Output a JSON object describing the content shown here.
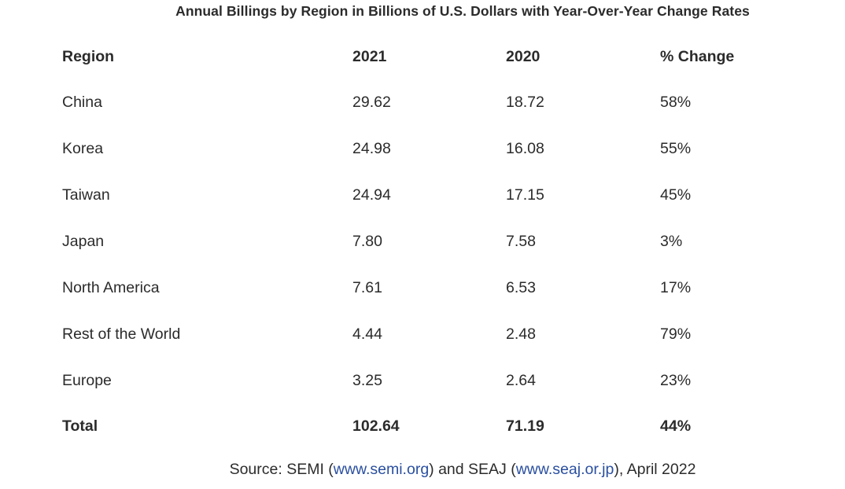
{
  "title": "Annual Billings by Region in Billions of U.S. Dollars with Year-Over-Year Change Rates",
  "table": {
    "headers": [
      "Region",
      "2021",
      "2020",
      "% Change"
    ],
    "rows": [
      [
        "China",
        "29.62",
        "18.72",
        "58%"
      ],
      [
        "Korea",
        "24.98",
        "16.08",
        "55%"
      ],
      [
        "Taiwan",
        "24.94",
        "17.15",
        "45%"
      ],
      [
        "Japan",
        "7.80",
        "7.58",
        "3%"
      ],
      [
        "North America",
        "7.61",
        "6.53",
        "17%"
      ],
      [
        "Rest of the World",
        "4.44",
        "2.48",
        "79%"
      ],
      [
        "Europe",
        "3.25",
        "2.64",
        "23%"
      ]
    ],
    "total": [
      "Total",
      "102.64",
      "71.19",
      "44%"
    ]
  },
  "source": {
    "prefix": "Source: SEMI (",
    "link1": "www.semi.org",
    "middle": ") and SEAJ (",
    "link2": "www.seaj.or.jp",
    "suffix": "), April 2022"
  },
  "colors": {
    "text": "#2b2b2b",
    "link": "#2a4fa0"
  }
}
